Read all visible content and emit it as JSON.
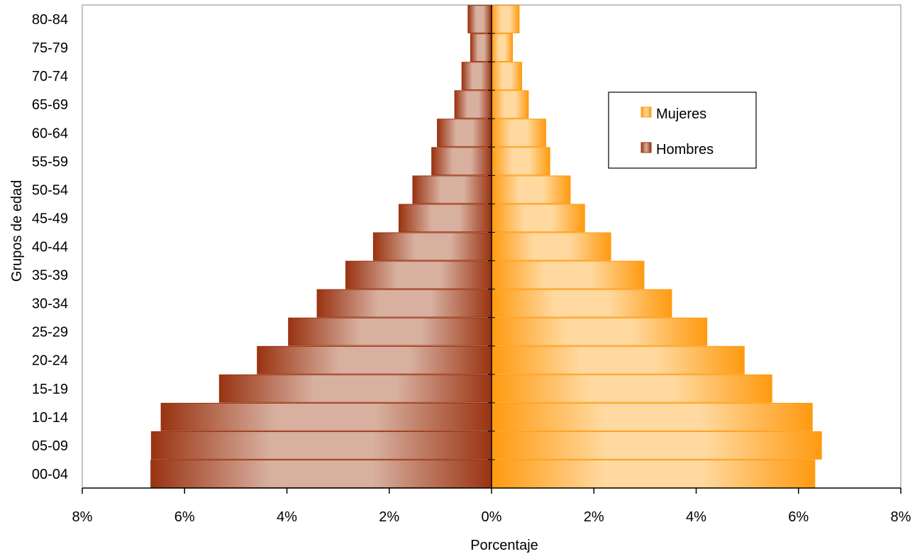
{
  "chart_data": {
    "type": "bar",
    "orientation": "horizontal",
    "layout": "population-pyramid",
    "title": "",
    "xlabel": "Porcentaje",
    "ylabel": "Grupos de edad",
    "xlim": [
      -8,
      8
    ],
    "x_ticks": [
      -8,
      -6,
      -4,
      -2,
      0,
      2,
      4,
      6,
      8
    ],
    "x_tick_labels": [
      "8%",
      "6%",
      "4%",
      "2%",
      "0%",
      "2%",
      "4%",
      "6%",
      "8%"
    ],
    "categories": [
      "00-04",
      "05-09",
      "10-14",
      "15-19",
      "20-24",
      "25-29",
      "30-34",
      "35-39",
      "40-44",
      "45-49",
      "50-54",
      "55-59",
      "60-64",
      "65-69",
      "70-74",
      "75-79",
      "80-84"
    ],
    "series": [
      {
        "name": "Mujeres",
        "side": "right",
        "color": "#ff9a10",
        "highlight": "#ffd9a0",
        "values": [
          6.32,
          6.45,
          6.27,
          5.48,
          4.94,
          4.21,
          3.52,
          2.98,
          2.33,
          1.82,
          1.54,
          1.14,
          1.06,
          0.72,
          0.59,
          0.41,
          0.54
        ]
      },
      {
        "name": "Hombres",
        "side": "left",
        "color": "#993311",
        "highlight": "#d8b0a0",
        "values": [
          6.66,
          6.65,
          6.46,
          5.32,
          4.58,
          3.97,
          3.41,
          2.85,
          2.31,
          1.81,
          1.54,
          1.17,
          1.06,
          0.72,
          0.58,
          0.41,
          0.46
        ]
      }
    ],
    "legend": {
      "position": "top-right",
      "items": [
        "Mujeres",
        "Hombres"
      ]
    },
    "grid": false
  }
}
